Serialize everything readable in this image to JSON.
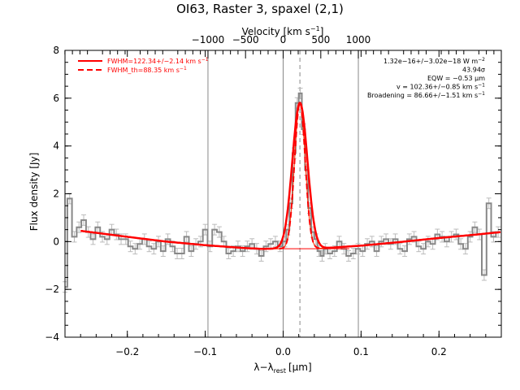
{
  "chart_data": {
    "type": "line",
    "title": "OI63, Raster 3, spaxel (2,1)",
    "xlabel": "λ−λ",
    "xlabel_sub": "rest",
    "xlabel_unit": "[μm]",
    "ylabel": "Flux density [Jy]",
    "top_axis_label": "Velocity [km s",
    "top_axis_label_sup": "−1",
    "top_axis_label_end": "]",
    "xlim": [
      -0.28,
      0.28
    ],
    "ylim": [
      -4,
      8
    ],
    "x_ticks": [
      {
        "v": -0.2,
        "label": "−0.2"
      },
      {
        "v": -0.1,
        "label": "−0.1"
      },
      {
        "v": 0.0,
        "label": "0.0"
      },
      {
        "v": 0.1,
        "label": "0.1"
      },
      {
        "v": 0.2,
        "label": "0.2"
      }
    ],
    "y_ticks": [
      {
        "v": -4,
        "label": "−4"
      },
      {
        "v": -2,
        "label": "−2"
      },
      {
        "v": 0,
        "label": "0"
      },
      {
        "v": 2,
        "label": "2"
      },
      {
        "v": 4,
        "label": "4"
      },
      {
        "v": 6,
        "label": "6"
      },
      {
        "v": 8,
        "label": "8"
      }
    ],
    "top_ticks": [
      {
        "v": -0.0965,
        "label": "−1000"
      },
      {
        "v": -0.0483,
        "label": "−500"
      },
      {
        "v": 0.0,
        "label": "0"
      },
      {
        "v": 0.0483,
        "label": "500"
      },
      {
        "v": 0.0965,
        "label": "1000"
      }
    ],
    "vertical_lines": [
      -0.0965,
      0.0,
      0.0965
    ],
    "center_line": 0.0215,
    "zero_level": 0,
    "continuum": {
      "x": [
        -0.26,
        -0.2,
        -0.15,
        -0.1,
        -0.05,
        -0.03,
        0.0,
        0.05,
        0.1,
        0.15,
        0.2,
        0.25,
        0.28
      ],
      "y": [
        0.45,
        0.2,
        0.0,
        -0.15,
        -0.27,
        -0.3,
        -0.3,
        -0.28,
        -0.17,
        -0.02,
        0.15,
        0.3,
        0.4
      ]
    },
    "line_fit": {
      "center": 0.0215,
      "fwhm": 0.0227,
      "peak": 6.1
    },
    "instrument_fit": {
      "center": 0.0215,
      "fwhm": 0.016,
      "peak": 6.1
    },
    "spectrum": {
      "x": [
        -0.28,
        -0.274,
        -0.268,
        -0.262,
        -0.256,
        -0.25,
        -0.244,
        -0.238,
        -0.232,
        -0.226,
        -0.22,
        -0.214,
        -0.208,
        -0.202,
        -0.196,
        -0.19,
        -0.184,
        -0.178,
        -0.172,
        -0.166,
        -0.16,
        -0.154,
        -0.148,
        -0.142,
        -0.136,
        -0.13,
        -0.124,
        -0.118,
        -0.112,
        -0.106,
        -0.1,
        -0.094,
        -0.088,
        -0.082,
        -0.076,
        -0.07,
        -0.064,
        -0.058,
        -0.052,
        -0.046,
        -0.04,
        -0.034,
        -0.028,
        -0.022,
        -0.016,
        -0.01,
        -0.004,
        0.002,
        0.006,
        0.01,
        0.014,
        0.018,
        0.022,
        0.026,
        0.03,
        0.034,
        0.038,
        0.042,
        0.046,
        0.05,
        0.054,
        0.06,
        0.066,
        0.072,
        0.078,
        0.084,
        0.09,
        0.096,
        0.102,
        0.108,
        0.114,
        0.12,
        0.126,
        0.132,
        0.138,
        0.144,
        0.15,
        0.156,
        0.162,
        0.168,
        0.174,
        0.18,
        0.186,
        0.192,
        0.198,
        0.204,
        0.21,
        0.216,
        0.222,
        0.228,
        0.234,
        0.24,
        0.246,
        0.252,
        0.258,
        0.264,
        0.27,
        0.276
      ],
      "y": [
        -1.9,
        1.8,
        0.2,
        0.6,
        0.9,
        0.4,
        0.1,
        0.6,
        0.2,
        0.1,
        0.5,
        0.3,
        0.1,
        0.1,
        -0.2,
        -0.3,
        -0.1,
        0.1,
        -0.2,
        -0.3,
        0.0,
        -0.4,
        0.1,
        -0.2,
        -0.5,
        -0.5,
        0.2,
        -0.4,
        -0.1,
        0.0,
        0.5,
        -0.2,
        0.5,
        0.4,
        0.0,
        -0.5,
        -0.4,
        -0.2,
        -0.4,
        -0.2,
        -0.1,
        -0.3,
        -0.6,
        -0.2,
        -0.1,
        0.0,
        -0.2,
        0.0,
        0.5,
        1.6,
        3.7,
        5.8,
        6.2,
        4.7,
        3.0,
        1.4,
        0.4,
        0.1,
        -0.4,
        -0.6,
        -0.3,
        -0.5,
        -0.4,
        0.0,
        -0.3,
        -0.6,
        -0.5,
        -0.3,
        -0.4,
        -0.1,
        0.0,
        -0.4,
        0.0,
        0.1,
        -0.1,
        0.1,
        -0.3,
        -0.4,
        0.1,
        0.2,
        -0.2,
        -0.3,
        0.0,
        -0.1,
        0.3,
        0.2,
        0.0,
        0.2,
        0.3,
        -0.1,
        -0.3,
        0.2,
        0.6,
        0.3,
        -1.4,
        1.6,
        0.2,
        0.4
      ],
      "err": 0.22
    },
    "legend": [
      {
        "label": "FWHM=122.34+/−2.14 km s",
        "sup": "−1",
        "color": "#ff0000",
        "style": "solid"
      },
      {
        "label": "FWHM_th=88.35 km s",
        "sup": "−1",
        "color": "#ff0000",
        "style": "dashed"
      }
    ],
    "annotations": [
      {
        "text": "1.32e−16+/−3.02e−18 W m",
        "sup": "−2"
      },
      {
        "text": "43.94σ",
        "sup": ""
      },
      {
        "text": "EQW = −0.53 μm",
        "sup": ""
      },
      {
        "text": "v = 102.36+/−0.85 km s",
        "sup": "−1"
      },
      {
        "text": "Broadening = 86.66+/−1.51 km s",
        "sup": "−1"
      }
    ],
    "colors": {
      "spectrum": "#888888",
      "errorbars": "#bbbbbb",
      "fit": "#ff0000",
      "instrument": "#ff3300",
      "vlines": "#888888",
      "axes": "#000000"
    },
    "grid": false,
    "legend_position": "top-left"
  }
}
